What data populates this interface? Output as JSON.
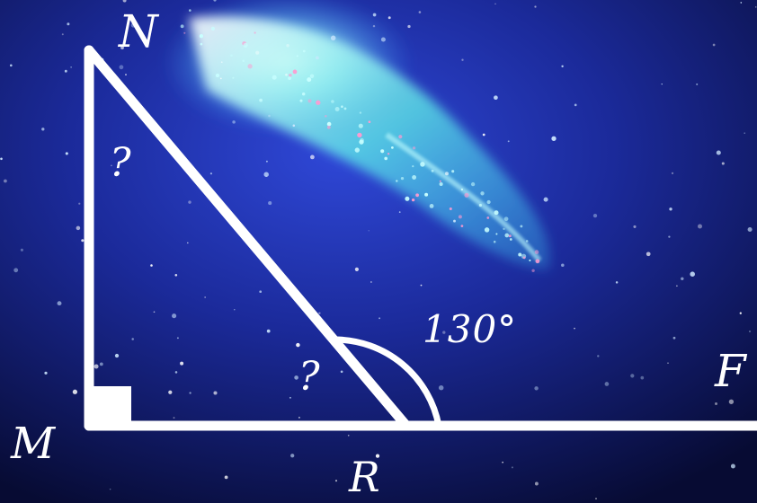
{
  "labels": {
    "vertex_n": "N",
    "vertex_m": "M",
    "vertex_r": "R",
    "point_f": "F",
    "angle_n_unknown": "?",
    "angle_r_unknown": "?",
    "exterior_angle": "130°"
  },
  "colors": {
    "lines": "#ffffff",
    "background": "#0a0f3a",
    "nebula": "#4fe8f0"
  }
}
